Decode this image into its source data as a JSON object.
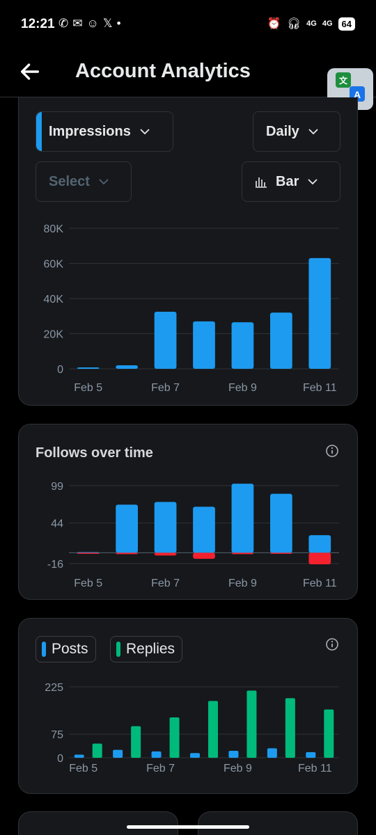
{
  "status": {
    "time": "12:21",
    "left_icons": [
      "whatsapp-icon",
      "chat-icon",
      "snapchat-icon",
      "x-icon",
      "dot"
    ],
    "network_1": "4G",
    "network_2": "4G",
    "battery": "64"
  },
  "header": {
    "title": "Account Analytics"
  },
  "impressions_card": {
    "metric_label": "Impressions",
    "period_label": "Daily",
    "select_label": "Select",
    "chart_type_label": "Bar"
  },
  "follows_card": {
    "title": "Follows over time"
  },
  "posts_card": {
    "posts_label": "Posts",
    "replies_label": "Replies"
  },
  "colors": {
    "blue": "#1d9bf0",
    "red": "#f4212e",
    "green": "#00ba7c"
  },
  "chart_data": [
    {
      "type": "bar",
      "title": "",
      "categories": [
        "Feb 5",
        "Feb 6",
        "Feb 7",
        "Feb 8",
        "Feb 9",
        "Feb 10",
        "Feb 11"
      ],
      "x_tick_labels": [
        "Feb 5",
        "Feb 7",
        "Feb 9",
        "Feb 11"
      ],
      "y_ticks": [
        "0",
        "20K",
        "40K",
        "60K",
        "80K"
      ],
      "ylim": [
        0,
        80000
      ],
      "series": [
        {
          "values": [
            800,
            2000,
            32500,
            27000,
            26500,
            32000,
            63000
          ],
          "color": "#1d9bf0"
        }
      ]
    },
    {
      "type": "bar",
      "title": "Follows over time",
      "categories": [
        "Feb 5",
        "Feb 6",
        "Feb 7",
        "Feb 8",
        "Feb 9",
        "Feb 10",
        "Feb 11"
      ],
      "x_tick_labels": [
        "Feb 5",
        "Feb 7",
        "Feb 9",
        "Feb 11"
      ],
      "y_ticks": [
        "-16",
        "44",
        "99"
      ],
      "ylim": [
        -16,
        99
      ],
      "series": [
        {
          "values": [
            1,
            71,
            75,
            68,
            102,
            87,
            26
          ],
          "color": "#1d9bf0"
        },
        {
          "values": [
            0,
            -2,
            -4,
            -9,
            -2,
            -1,
            -17
          ],
          "color": "#f4212e"
        }
      ]
    },
    {
      "type": "bar",
      "title": "",
      "categories": [
        "Feb 5",
        "Feb 6",
        "Feb 7",
        "Feb 8",
        "Feb 9",
        "Feb 10",
        "Feb 11"
      ],
      "x_tick_labels": [
        "Feb 5",
        "Feb 7",
        "Feb 9",
        "Feb 11"
      ],
      "y_ticks": [
        "0",
        "75",
        "225"
      ],
      "ylim": [
        0,
        225
      ],
      "series": [
        {
          "name": "Posts",
          "values": [
            10,
            25,
            20,
            15,
            22,
            30,
            18
          ],
          "color": "#1d9bf0"
        },
        {
          "name": "Replies",
          "values": [
            45,
            100,
            128,
            180,
            213,
            189,
            153
          ],
          "color": "#00ba7c"
        }
      ]
    }
  ]
}
